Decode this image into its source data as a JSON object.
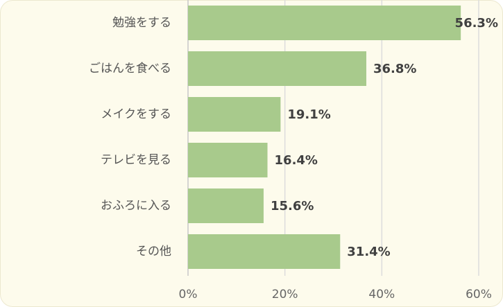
{
  "chart_data": {
    "type": "bar",
    "orientation": "horizontal",
    "categories": [
      "勉強をする",
      "ごはんを食べる",
      "メイクをする",
      "テレビを見る",
      "おふろに入る",
      "その他"
    ],
    "values": [
      56.3,
      36.8,
      19.1,
      16.4,
      15.6,
      31.4
    ],
    "value_labels": [
      "56.3%",
      "36.8%",
      "19.1%",
      "16.4%",
      "15.6%",
      "31.4%"
    ],
    "color": "#a8ca8c",
    "xlim": [
      0,
      60
    ],
    "xticks": [
      {
        "value": 0,
        "label": "0%"
      },
      {
        "value": 20,
        "label": "20%"
      },
      {
        "value": 40,
        "label": "40%"
      },
      {
        "value": 60,
        "label": "60%"
      }
    ],
    "grid": true
  }
}
